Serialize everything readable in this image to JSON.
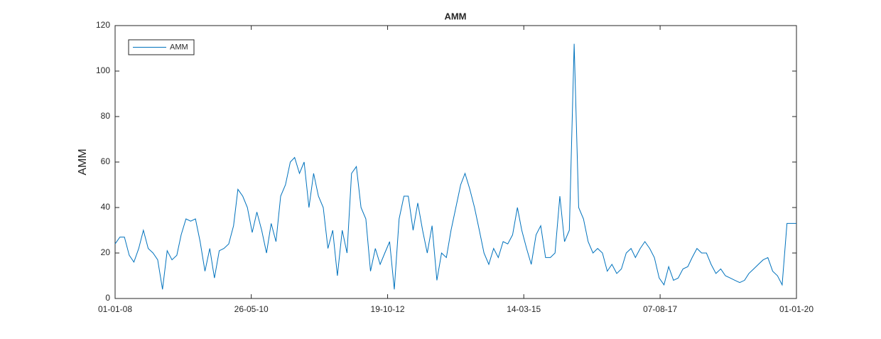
{
  "chart_data": {
    "type": "line",
    "title": "AMM",
    "y_label": "AMM",
    "legend": "northwest",
    "grid": false,
    "xlim": [
      "2008-01-01",
      "2020-01-01"
    ],
    "xticks": [
      {
        "value": "2008-01-01",
        "label": "01-01-08"
      },
      {
        "value": "2010-05-26",
        "label": "26-05-10"
      },
      {
        "value": "2012-10-19",
        "label": "19-10-12"
      },
      {
        "value": "2015-03-14",
        "label": "14-03-15"
      },
      {
        "value": "2017-08-07",
        "label": "07-08-17"
      },
      {
        "value": "2020-01-01",
        "label": "01-01-20"
      }
    ],
    "ylim": [
      0,
      120
    ],
    "yticks": [
      0,
      20,
      40,
      60,
      80,
      100,
      120
    ],
    "x": [
      "2008-01-01",
      "2008-02-01",
      "2008-03-01",
      "2008-04-01",
      "2008-05-01",
      "2008-06-01",
      "2008-07-01",
      "2008-08-01",
      "2008-09-01",
      "2008-10-01",
      "2008-11-01",
      "2008-12-01",
      "2009-01-01",
      "2009-02-01",
      "2009-03-01",
      "2009-04-01",
      "2009-05-01",
      "2009-06-01",
      "2009-07-01",
      "2009-08-01",
      "2009-09-01",
      "2009-10-01",
      "2009-11-01",
      "2009-12-01",
      "2010-01-01",
      "2010-02-01",
      "2010-03-01",
      "2010-04-01",
      "2010-05-01",
      "2010-06-01",
      "2010-07-01",
      "2010-08-01",
      "2010-09-01",
      "2010-10-01",
      "2010-11-01",
      "2010-12-01",
      "2011-01-01",
      "2011-02-01",
      "2011-03-01",
      "2011-04-01",
      "2011-05-01",
      "2011-06-01",
      "2011-07-01",
      "2011-08-01",
      "2011-09-01",
      "2011-10-01",
      "2011-11-01",
      "2011-12-01",
      "2012-01-01",
      "2012-02-01",
      "2012-03-01",
      "2012-04-01",
      "2012-05-01",
      "2012-06-01",
      "2012-07-01",
      "2012-08-01",
      "2012-09-01",
      "2012-10-01",
      "2012-11-01",
      "2012-12-01",
      "2013-01-01",
      "2013-02-01",
      "2013-03-01",
      "2013-04-01",
      "2013-05-01",
      "2013-06-01",
      "2013-07-01",
      "2013-08-01",
      "2013-09-01",
      "2013-10-01",
      "2013-11-01",
      "2013-12-01",
      "2014-01-01",
      "2014-02-01",
      "2014-03-01",
      "2014-04-01",
      "2014-05-01",
      "2014-06-01",
      "2014-07-01",
      "2014-08-01",
      "2014-09-01",
      "2014-10-01",
      "2014-11-01",
      "2014-12-01",
      "2015-01-01",
      "2015-02-01",
      "2015-03-01",
      "2015-04-01",
      "2015-05-01",
      "2015-06-01",
      "2015-07-01",
      "2015-08-01",
      "2015-09-01",
      "2015-10-01",
      "2015-11-01",
      "2015-12-01",
      "2016-01-01",
      "2016-02-01",
      "2016-03-01",
      "2016-04-01",
      "2016-05-01",
      "2016-06-01",
      "2016-07-01",
      "2016-08-01",
      "2016-09-01",
      "2016-10-01",
      "2016-11-01",
      "2016-12-01",
      "2017-01-01",
      "2017-02-01",
      "2017-03-01",
      "2017-04-01",
      "2017-05-01",
      "2017-06-01",
      "2017-07-01",
      "2017-08-01",
      "2017-09-01",
      "2017-10-01",
      "2017-11-01",
      "2017-12-01",
      "2018-01-01",
      "2018-02-01",
      "2018-03-01",
      "2018-04-01",
      "2018-05-01",
      "2018-06-01",
      "2018-07-01",
      "2018-08-01",
      "2018-09-01",
      "2018-10-01",
      "2018-11-01",
      "2018-12-01",
      "2019-01-01",
      "2019-02-01",
      "2019-03-01",
      "2019-04-01",
      "2019-05-01",
      "2019-06-01",
      "2019-07-01",
      "2019-08-01",
      "2019-09-01",
      "2019-10-01",
      "2019-11-01",
      "2019-12-01",
      "2020-01-01"
    ],
    "series": [
      {
        "name": "AMM",
        "color": "#0072bd",
        "values": [
          24,
          27,
          27,
          19,
          16,
          22,
          30,
          22,
          20,
          17,
          4,
          21,
          17,
          19,
          28,
          35,
          34,
          35,
          25,
          12,
          22,
          9,
          21,
          22,
          24,
          32,
          48,
          45,
          40,
          29,
          38,
          30,
          20,
          33,
          25,
          45,
          50,
          60,
          62,
          55,
          60,
          40,
          55,
          45,
          40,
          22,
          30,
          10,
          30,
          20,
          55,
          58,
          40,
          35,
          12,
          22,
          15,
          20,
          25,
          4,
          35,
          45,
          45,
          30,
          42,
          30,
          20,
          32,
          8,
          20,
          18,
          30,
          40,
          50,
          55,
          48,
          40,
          30,
          20,
          15,
          22,
          18,
          25,
          24,
          28,
          40,
          30,
          22,
          15,
          28,
          32,
          18,
          18,
          20,
          45,
          25,
          30,
          112,
          40,
          35,
          25,
          20,
          22,
          20,
          12,
          15,
          11,
          13,
          20,
          22,
          18,
          22,
          25,
          22,
          18,
          9,
          6,
          14,
          8,
          9,
          13,
          14,
          18,
          22,
          20,
          20,
          15,
          11,
          13,
          10,
          9,
          8,
          7,
          8,
          11,
          13,
          15,
          17,
          18,
          12,
          10,
          6,
          33,
          33,
          33
        ]
      }
    ]
  }
}
